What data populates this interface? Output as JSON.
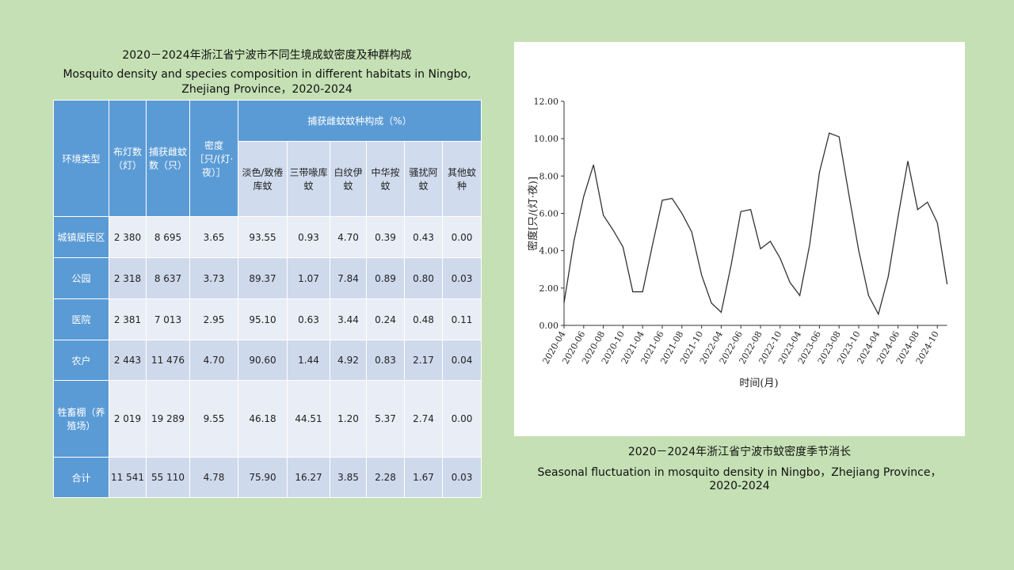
{
  "table": {
    "title_zh": "2020－2024年浙江省宁波市不同生境成蚊密度及种群构成",
    "title_en": "Mosquito density and species composition in different habitats in Ningbo, Zhejiang Province，2020-2024",
    "headers": [
      "环境类型",
      "布灯数（灯）",
      "捕获雌蚊数（只）",
      "密度［只/(灯·夜）］"
    ],
    "group_header": "捕获雌蚊蚊种构成（%）",
    "sub_headers": [
      "淡色/致倦库蚊",
      "三带喙库蚊",
      "白纹伊蚊",
      "中华按蚊",
      "骚扰阿蚊",
      "其他蚊种"
    ],
    "rows": [
      [
        "城镇居民区",
        "2 380",
        "8 695",
        "3.65",
        "93.55",
        "0.93",
        "4.70",
        "0.39",
        "0.43",
        "0.00"
      ],
      [
        "公园",
        "2 318",
        "8 637",
        "3.73",
        "89.37",
        "1.07",
        "7.84",
        "0.89",
        "0.80",
        "0.03"
      ],
      [
        "医院",
        "2 381",
        "7 013",
        "2.95",
        "95.10",
        "0.63",
        "3.44",
        "0.24",
        "0.48",
        "0.11"
      ],
      [
        "农户",
        "2 443",
        "11 476",
        "4.70",
        "90.60",
        "1.44",
        "4.92",
        "0.83",
        "2.17",
        "0.04"
      ],
      [
        "牲畜棚（养殖场）",
        "2 019",
        "19 289",
        "9.55",
        "46.18",
        "44.51",
        "1.20",
        "5.37",
        "2.74",
        "0.00"
      ],
      [
        "合计",
        "11 541",
        "55 110",
        "4.78",
        "75.90",
        "16.27",
        "3.85",
        "2.28",
        "1.67",
        "0.03"
      ]
    ]
  },
  "chart_data": {
    "type": "line",
    "caption_zh": "2020－2024年浙江省宁波市蚊密度季节消长",
    "caption_en": "Seasonal fluctuation in mosquito density in Ningbo，Zhejiang Province，2020-2024",
    "x_label": "时间(月)",
    "y_label": "密度[只/(灯·夜)]",
    "categories": [
      "2020-04",
      null,
      "2020-06",
      null,
      "2020-08",
      null,
      "2020-10",
      null,
      "2021-04",
      null,
      "2021-06",
      null,
      "2021-08",
      null,
      "2021-10",
      null,
      "2022-04",
      null,
      "2022-06",
      null,
      "2022-08",
      null,
      "2022-10",
      null,
      "2023-04",
      null,
      "2023-06",
      null,
      "2023-08",
      null,
      "2023-10",
      null,
      "2024-04",
      null,
      "2024-06",
      null,
      "2024-08",
      null,
      "2024-10",
      null
    ],
    "series": [
      {
        "color": "#333333",
        "values": [
          1.2,
          4.5,
          6.9,
          8.6,
          5.9,
          5.1,
          4.2,
          1.8,
          1.8,
          4.3,
          6.7,
          6.8,
          6.0,
          5.0,
          2.7,
          1.2,
          0.7,
          3.2,
          6.1,
          6.2,
          4.1,
          4.5,
          3.6,
          2.3,
          1.6,
          4.3,
          8.2,
          10.3,
          10.1,
          7.0,
          4.0,
          1.6,
          0.6,
          2.6,
          5.8,
          8.8,
          6.2,
          6.6,
          5.5,
          2.2
        ]
      }
    ],
    "ylim": [
      0,
      12
    ],
    "yticks": [
      {
        "value": 0,
        "label": "0.00"
      },
      {
        "value": 2,
        "label": "2.00"
      },
      {
        "value": 4,
        "label": "4.00"
      },
      {
        "value": 6,
        "label": "6.00"
      },
      {
        "value": 8,
        "label": "8.00"
      },
      {
        "value": 10,
        "label": "10.00"
      },
      {
        "value": 12,
        "label": "12.00"
      }
    ]
  }
}
